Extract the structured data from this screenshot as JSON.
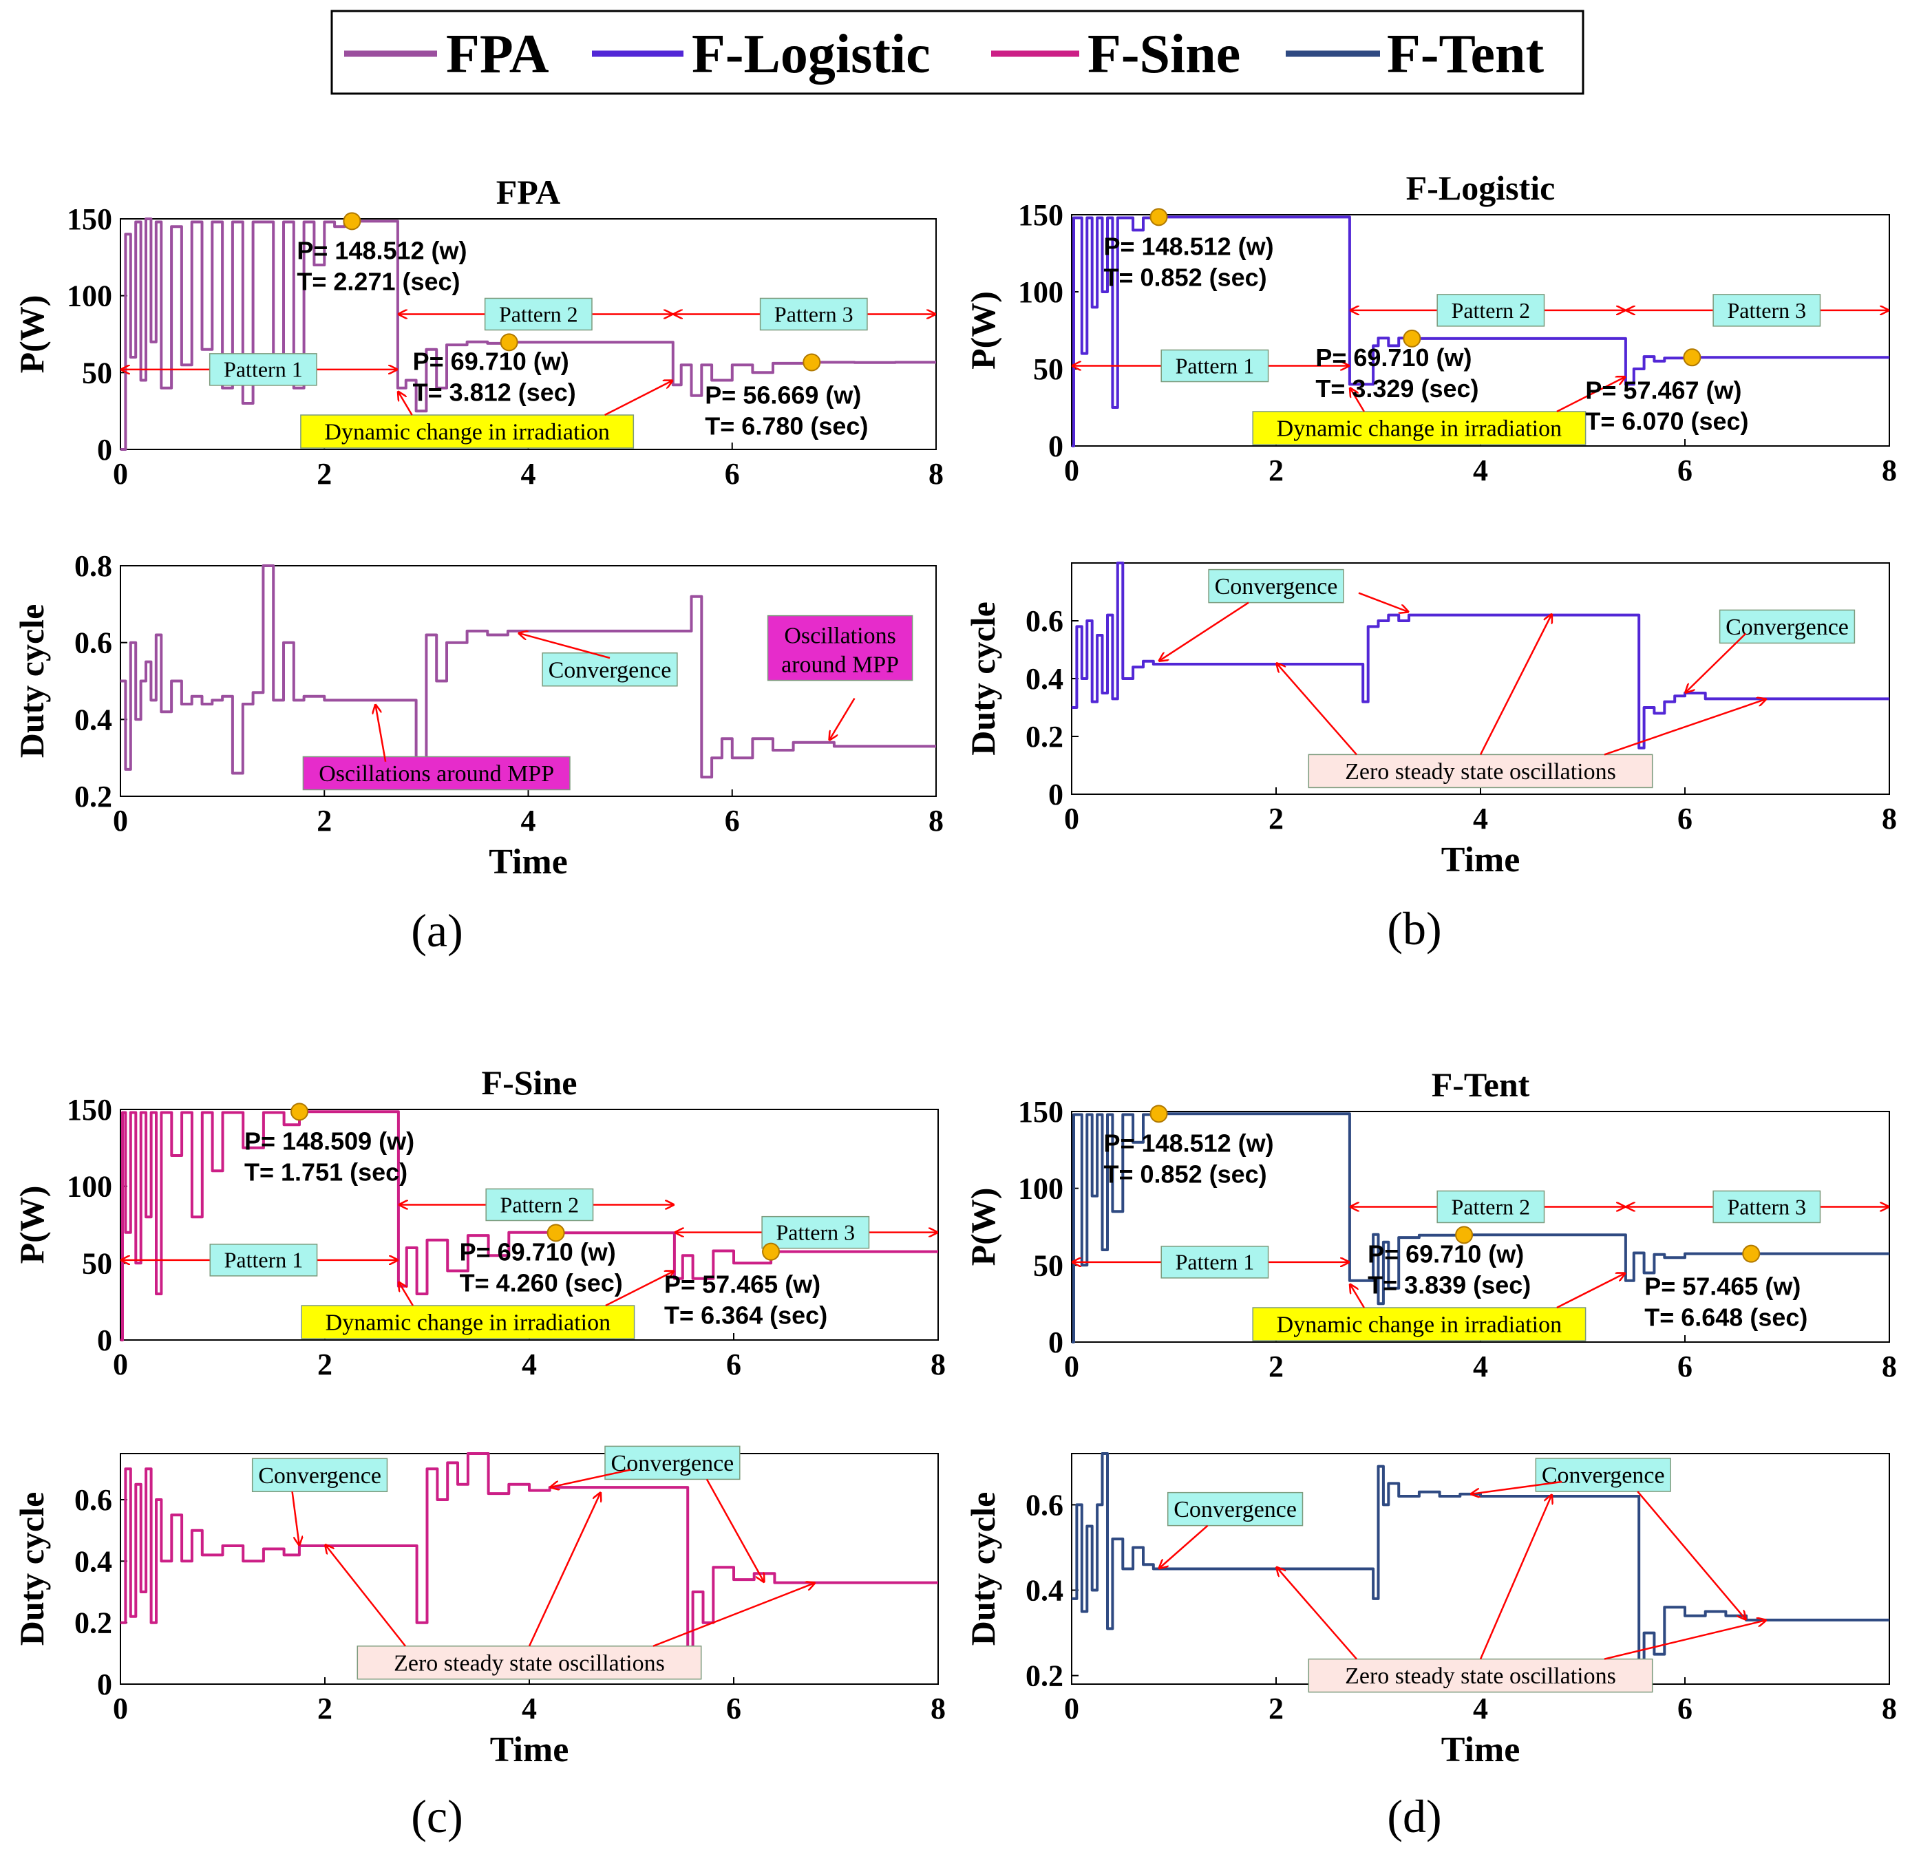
{
  "colors": {
    "FPA": "#9b4f9e",
    "F-Logistic": "#5227d6",
    "F-Sine": "#cc1f86",
    "F-Tent": "#2f4a82",
    "arrow": "#ff0000",
    "box_cyan": "#aaf5ee",
    "box_yellow": "#ffff00",
    "box_magenta": "#e62ccb",
    "box_pink": "#fde6e2",
    "marker": "#f7b500"
  },
  "legend": {
    "items": [
      {
        "name": "FPA",
        "color": "#9b4f9e"
      },
      {
        "name": "F-Logistic",
        "color": "#5227d6"
      },
      {
        "name": "F-Sine",
        "color": "#cc1f86"
      },
      {
        "name": "F-Tent",
        "color": "#2f4a82"
      }
    ]
  },
  "chart_data": [
    {
      "type": "line",
      "panel": "(a)",
      "title": "FPA",
      "series_name": "FPA",
      "power": {
        "ylabel": "P(W)",
        "xlim": [
          0,
          8
        ],
        "ylim": [
          0,
          150
        ],
        "xticks": [
          "0",
          "2",
          "4",
          "6",
          "8"
        ],
        "yticks": [
          "0",
          "50",
          "100",
          "150"
        ],
        "x": [
          0,
          0.05,
          0.1,
          0.15,
          0.2,
          0.25,
          0.3,
          0.35,
          0.4,
          0.5,
          0.6,
          0.7,
          0.8,
          0.9,
          1.0,
          1.1,
          1.2,
          1.3,
          1.4,
          1.5,
          1.6,
          1.7,
          1.8,
          1.9,
          2.0,
          2.1,
          2.2,
          2.271,
          2.4,
          2.7,
          2.72,
          2.8,
          2.9,
          3.0,
          3.1,
          3.2,
          3.4,
          3.6,
          3.812,
          4.2,
          4.6,
          5.0,
          5.38,
          5.42,
          5.5,
          5.6,
          5.7,
          5.8,
          6.0,
          6.2,
          6.4,
          6.78,
          7.2,
          7.6,
          8.0
        ],
        "y": [
          0,
          140,
          60,
          148,
          45,
          150,
          70,
          148,
          40,
          145,
          55,
          148,
          65,
          148,
          40,
          148,
          30,
          148,
          148,
          60,
          148,
          40,
          148,
          120,
          148,
          145,
          148,
          148.5,
          148.5,
          148.5,
          40,
          45,
          25,
          65,
          40,
          68,
          70,
          69,
          69.7,
          69.7,
          69.7,
          69.7,
          69.7,
          42,
          55,
          35,
          55,
          45,
          55,
          50,
          56,
          56.7,
          56.5,
          56.7,
          56.7
        ],
        "marker_points": [
          {
            "x": 2.271,
            "y": 148.512
          },
          {
            "x": 3.812,
            "y": 69.71
          },
          {
            "x": 6.78,
            "y": 56.669
          }
        ]
      },
      "duty": {
        "ylabel": "Duty cycle",
        "xlabel": "Time",
        "xlim": [
          0,
          8
        ],
        "ylim": [
          0.2,
          0.8
        ],
        "xticks": [
          "0",
          "2",
          "4",
          "6",
          "8"
        ],
        "yticks": [
          "0.2",
          "0.4",
          "0.6",
          "0.8"
        ],
        "x": [
          0,
          0.05,
          0.1,
          0.15,
          0.2,
          0.25,
          0.3,
          0.35,
          0.4,
          0.5,
          0.6,
          0.7,
          0.8,
          0.9,
          1.0,
          1.1,
          1.2,
          1.3,
          1.4,
          1.5,
          1.6,
          1.7,
          1.8,
          2.0,
          2.2,
          2.5,
          2.8,
          2.9,
          3.0,
          3.1,
          3.2,
          3.4,
          3.6,
          3.8,
          4.0,
          5.5,
          5.6,
          5.7,
          5.8,
          5.9,
          6.0,
          6.2,
          6.4,
          6.6,
          7.0,
          7.5,
          8.0
        ],
        "y": [
          0.5,
          0.27,
          0.6,
          0.4,
          0.5,
          0.55,
          0.45,
          0.62,
          0.42,
          0.5,
          0.44,
          0.46,
          0.44,
          0.45,
          0.46,
          0.26,
          0.44,
          0.47,
          0.8,
          0.45,
          0.6,
          0.45,
          0.46,
          0.45,
          0.45,
          0.45,
          0.45,
          0.25,
          0.62,
          0.5,
          0.6,
          0.63,
          0.62,
          0.63,
          0.63,
          0.63,
          0.72,
          0.25,
          0.3,
          0.35,
          0.3,
          0.35,
          0.32,
          0.34,
          0.33,
          0.33,
          0.33
        ]
      },
      "annotations": {
        "point_labels": [
          {
            "p": "P= 148.512 (w)",
            "t": "T=  2.271 (sec)"
          },
          {
            "p": "P= 69.710 (w)",
            "t": "T=  3.812 (sec)"
          },
          {
            "p": "P= 56.669 (w)",
            "t": "T=  6.780 (sec)"
          }
        ],
        "patterns": [
          "Pattern 1",
          "Pattern 2",
          "Pattern 3"
        ],
        "dynamic_change": "Dynamic change in irradiation",
        "duty_labels": [
          "Convergence",
          "Oscillations around MPP",
          "Oscillations around MPP"
        ]
      }
    },
    {
      "type": "line",
      "panel": "(b)",
      "title": "F-Logistic",
      "series_name": "F-Logistic",
      "power": {
        "ylabel": "P(W)",
        "xlim": [
          0,
          8
        ],
        "ylim": [
          0,
          150
        ],
        "xticks": [
          "0",
          "2",
          "4",
          "6",
          "8"
        ],
        "yticks": [
          "0",
          "50",
          "100",
          "150"
        ],
        "x": [
          0,
          0.02,
          0.1,
          0.15,
          0.2,
          0.25,
          0.3,
          0.35,
          0.4,
          0.45,
          0.5,
          0.6,
          0.7,
          0.852,
          1.5,
          2.7,
          2.72,
          2.9,
          2.95,
          3.0,
          3.1,
          3.2,
          3.329,
          4.0,
          5.4,
          5.42,
          5.5,
          5.6,
          5.7,
          5.8,
          6.07,
          7.0,
          8.0
        ],
        "y": [
          0,
          148,
          60,
          148,
          90,
          148,
          100,
          148,
          25,
          148,
          148,
          140,
          148,
          148.5,
          148.5,
          148.5,
          40,
          40,
          65,
          70,
          65,
          70,
          69.7,
          69.7,
          69.7,
          40,
          50,
          58,
          55,
          57,
          57.5,
          57.5,
          57.5
        ],
        "marker_points": [
          {
            "x": 0.852,
            "y": 148.512
          },
          {
            "x": 3.329,
            "y": 69.71
          },
          {
            "x": 6.07,
            "y": 57.467
          }
        ]
      },
      "duty": {
        "ylabel": "Duty cycle",
        "xlabel": "Time",
        "xlim": [
          0,
          8
        ],
        "ylim": [
          0,
          0.8
        ],
        "xticks": [
          "0",
          "2",
          "4",
          "6",
          "8"
        ],
        "yticks": [
          "0",
          "0.2",
          "0.4",
          "0.6"
        ],
        "x": [
          0,
          0.05,
          0.1,
          0.15,
          0.2,
          0.25,
          0.3,
          0.35,
          0.4,
          0.45,
          0.5,
          0.6,
          0.7,
          0.8,
          1.0,
          2.8,
          2.85,
          2.9,
          3.0,
          3.1,
          3.2,
          3.3,
          4.0,
          5.5,
          5.55,
          5.6,
          5.7,
          5.8,
          5.9,
          6.0,
          6.2,
          7.0,
          8.0
        ],
        "y": [
          0.3,
          0.58,
          0.4,
          0.6,
          0.32,
          0.55,
          0.35,
          0.62,
          0.33,
          0.8,
          0.4,
          0.44,
          0.46,
          0.45,
          0.45,
          0.45,
          0.32,
          0.58,
          0.6,
          0.62,
          0.6,
          0.62,
          0.62,
          0.62,
          0.16,
          0.3,
          0.28,
          0.32,
          0.34,
          0.35,
          0.33,
          0.33,
          0.33
        ]
      },
      "annotations": {
        "point_labels": [
          {
            "p": "P= 148.512 (w)",
            "t": "T=  0.852 (sec)"
          },
          {
            "p": "P= 69.710 (w)",
            "t": "T=  3.329 (sec)"
          },
          {
            "p": "P= 57.467 (w)",
            "t": "T=  6.070 (sec)"
          }
        ],
        "patterns": [
          "Pattern 1",
          "Pattern 2",
          "Pattern 3"
        ],
        "dynamic_change": "Dynamic change in irradiation",
        "duty_labels": [
          "Convergence",
          "Convergence",
          "Zero steady state oscillations"
        ]
      }
    },
    {
      "type": "line",
      "panel": "(c)",
      "title": "F-Sine",
      "series_name": "F-Sine",
      "power": {
        "ylabel": "P(W)",
        "xlim": [
          0,
          8
        ],
        "ylim": [
          0,
          150
        ],
        "xticks": [
          "0",
          "2",
          "4",
          "6",
          "8"
        ],
        "yticks": [
          "0",
          "50",
          "100",
          "150"
        ],
        "x": [
          0,
          0.02,
          0.05,
          0.1,
          0.15,
          0.2,
          0.25,
          0.3,
          0.35,
          0.4,
          0.5,
          0.6,
          0.7,
          0.8,
          0.9,
          1.0,
          1.2,
          1.4,
          1.6,
          1.751,
          2.2,
          2.7,
          2.72,
          2.8,
          2.9,
          3.0,
          3.2,
          3.4,
          3.6,
          3.8,
          4.26,
          4.8,
          5.4,
          5.42,
          5.5,
          5.6,
          5.8,
          6.0,
          6.364,
          7.0,
          8.0
        ],
        "y": [
          0,
          148,
          70,
          148,
          50,
          148,
          80,
          148,
          30,
          148,
          120,
          148,
          80,
          148,
          110,
          148,
          125,
          148,
          140,
          148.5,
          148.5,
          148.5,
          35,
          60,
          30,
          65,
          45,
          68,
          55,
          70,
          69.7,
          69.7,
          69.7,
          40,
          55,
          40,
          58,
          50,
          57.5,
          57.5,
          57.5
        ],
        "marker_points": [
          {
            "x": 1.751,
            "y": 148.509
          },
          {
            "x": 4.26,
            "y": 69.71
          },
          {
            "x": 6.364,
            "y": 57.465
          }
        ]
      },
      "duty": {
        "ylabel": "Duty cycle",
        "xlabel": "Time",
        "xlim": [
          0,
          8
        ],
        "ylim": [
          0,
          0.75
        ],
        "xticks": [
          "0",
          "2",
          "4",
          "6",
          "8"
        ],
        "yticks": [
          "0",
          "0.2",
          "0.4",
          "0.6"
        ],
        "x": [
          0,
          0.05,
          0.1,
          0.15,
          0.2,
          0.25,
          0.3,
          0.35,
          0.4,
          0.5,
          0.6,
          0.7,
          0.8,
          1.0,
          1.2,
          1.4,
          1.6,
          1.75,
          2.8,
          2.9,
          3.0,
          3.1,
          3.2,
          3.3,
          3.4,
          3.6,
          3.8,
          4.0,
          4.2,
          5.5,
          5.55,
          5.6,
          5.7,
          5.8,
          6.0,
          6.2,
          6.4,
          7.0,
          8.0
        ],
        "y": [
          0.2,
          0.7,
          0.22,
          0.65,
          0.3,
          0.7,
          0.2,
          0.6,
          0.4,
          0.55,
          0.4,
          0.5,
          0.42,
          0.45,
          0.4,
          0.44,
          0.42,
          0.45,
          0.45,
          0.2,
          0.7,
          0.6,
          0.72,
          0.65,
          0.75,
          0.62,
          0.65,
          0.63,
          0.64,
          0.64,
          0.1,
          0.3,
          0.2,
          0.38,
          0.34,
          0.36,
          0.33,
          0.33,
          0.33
        ]
      },
      "annotations": {
        "point_labels": [
          {
            "p": "P= 148.509 (w)",
            "t": "T=  1.751 (sec)"
          },
          {
            "p": "P= 69.710 (w)",
            "t": "T=  4.260 (sec)"
          },
          {
            "p": "P= 57.465 (w)",
            "t": "T=  6.364 (sec)"
          }
        ],
        "patterns": [
          "Pattern 1",
          "Pattern 2",
          "Pattern 3"
        ],
        "dynamic_change": "Dynamic change in irradiation",
        "duty_labels": [
          "Convergence",
          "Convergence",
          "Zero steady state oscillations"
        ]
      }
    },
    {
      "type": "line",
      "panel": "(d)",
      "title": "F-Tent",
      "series_name": "F-Tent",
      "power": {
        "ylabel": "P(W)",
        "xlim": [
          0,
          8
        ],
        "ylim": [
          0,
          150
        ],
        "xticks": [
          "0",
          "2",
          "4",
          "6",
          "8"
        ],
        "yticks": [
          "0",
          "50",
          "100",
          "150"
        ],
        "x": [
          0,
          0.02,
          0.1,
          0.15,
          0.2,
          0.25,
          0.3,
          0.35,
          0.4,
          0.5,
          0.6,
          0.7,
          0.852,
          1.5,
          2.7,
          2.72,
          2.9,
          2.95,
          3.0,
          3.05,
          3.1,
          3.2,
          3.4,
          3.839,
          4.5,
          5.4,
          5.42,
          5.5,
          5.6,
          5.7,
          5.8,
          6.0,
          6.648,
          7.2,
          8.0
        ],
        "y": [
          0,
          148,
          50,
          148,
          95,
          148,
          60,
          148,
          85,
          148,
          130,
          148,
          148.5,
          148.5,
          148.5,
          40,
          40,
          70,
          25,
          65,
          35,
          68,
          69.5,
          69.7,
          69.7,
          69.7,
          40,
          58,
          45,
          57,
          55,
          57.5,
          57.5,
          57.5,
          57.5
        ],
        "marker_points": [
          {
            "x": 0.852,
            "y": 148.512
          },
          {
            "x": 3.839,
            "y": 69.71
          },
          {
            "x": 6.648,
            "y": 57.465
          }
        ]
      },
      "duty": {
        "ylabel": "Duty cycle",
        "xlabel": "Time",
        "xlim": [
          0,
          8
        ],
        "ylim": [
          0.18,
          0.72
        ],
        "xticks": [
          "0",
          "2",
          "4",
          "6",
          "8"
        ],
        "yticks": [
          "0.2",
          "0.4",
          "0.6"
        ],
        "x": [
          0,
          0.05,
          0.1,
          0.15,
          0.2,
          0.25,
          0.3,
          0.35,
          0.4,
          0.5,
          0.6,
          0.7,
          0.8,
          1.0,
          2.9,
          2.95,
          3.0,
          3.05,
          3.1,
          3.2,
          3.4,
          3.6,
          3.8,
          4.0,
          5.5,
          5.55,
          5.6,
          5.7,
          5.8,
          6.0,
          6.2,
          6.4,
          6.6,
          7.0,
          8.0
        ],
        "y": [
          0.38,
          0.6,
          0.35,
          0.55,
          0.4,
          0.6,
          0.72,
          0.31,
          0.52,
          0.45,
          0.5,
          0.46,
          0.45,
          0.45,
          0.45,
          0.38,
          0.69,
          0.6,
          0.65,
          0.62,
          0.63,
          0.62,
          0.625,
          0.62,
          0.62,
          0.19,
          0.3,
          0.25,
          0.36,
          0.34,
          0.35,
          0.34,
          0.33,
          0.33,
          0.33
        ]
      },
      "annotations": {
        "point_labels": [
          {
            "p": "P= 148.512 (w)",
            "t": "T=  0.852 (sec)"
          },
          {
            "p": "P= 69.710 (w)",
            "t": "T=  3.839 (sec)"
          },
          {
            "p": "P= 57.465 (w)",
            "t": "T=  6.648 (sec)"
          }
        ],
        "patterns": [
          "Pattern 1",
          "Pattern 2",
          "Pattern 3"
        ],
        "dynamic_change": "Dynamic change in irradiation",
        "duty_labels": [
          "Convergence",
          "Convergence",
          "Zero steady state oscillations"
        ]
      }
    }
  ]
}
